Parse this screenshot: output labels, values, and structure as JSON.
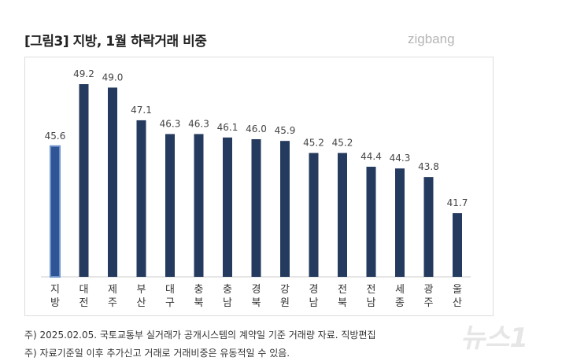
{
  "title": "[그림3] 지방, 1월 하락거래 비중",
  "logo": "zigbang",
  "watermark": "뉴스1",
  "notes": [
    "주) 2025.02.05. 국토교통부 실거래가 공개시스템의 계약일 기준 거래량  자료. 직방편집",
    "주) 자료기준일 이후 추가신고 거래로 거래비중은 유동적일 수 있음."
  ],
  "chart_data": {
    "type": "bar",
    "categories": [
      "지방",
      "대전",
      "제주",
      "부산",
      "대구",
      "충북",
      "충남",
      "경북",
      "강원",
      "경남",
      "전북",
      "전남",
      "세종",
      "광주",
      "울산"
    ],
    "values": [
      45.6,
      49.2,
      49.0,
      47.1,
      46.3,
      46.3,
      46.1,
      46.0,
      45.9,
      45.2,
      45.2,
      44.4,
      44.3,
      43.8,
      41.7
    ],
    "ylim": [
      38,
      50
    ],
    "grid": false,
    "colors": {
      "bar": "#243a5e",
      "highlight": "#2f5597",
      "highlight_border": "#6f94c9"
    }
  }
}
